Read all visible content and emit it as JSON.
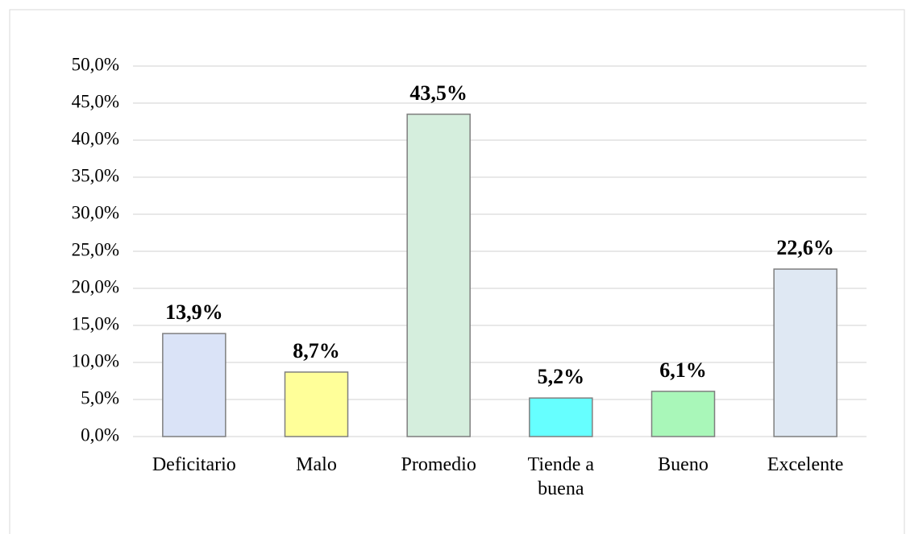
{
  "chart_data": {
    "type": "bar",
    "categories": [
      "Deficitario",
      "Malo",
      "Promedio",
      "Tiende a buena",
      "Bueno",
      "Excelente"
    ],
    "values": [
      13.9,
      8.7,
      43.5,
      5.2,
      6.1,
      22.6
    ],
    "value_labels": [
      "13,9%",
      "8,7%",
      "43,5%",
      "5,2%",
      "6,1%",
      "22,6%"
    ],
    "colors": [
      "#dae3f7",
      "#ffff99",
      "#d5eedd",
      "#66ffff",
      "#a9f7b9",
      "#dfe8f3"
    ],
    "ylim": [
      0,
      50
    ],
    "yticks": [
      {
        "value": 0,
        "label": "0,0%"
      },
      {
        "value": 5,
        "label": "5,0%"
      },
      {
        "value": 10,
        "label": "10,0%"
      },
      {
        "value": 15,
        "label": "15,0%"
      },
      {
        "value": 20,
        "label": "20,0%"
      },
      {
        "value": 25,
        "label": "25,0%"
      },
      {
        "value": 30,
        "label": "30,0%"
      },
      {
        "value": 35,
        "label": "35,0%"
      },
      {
        "value": 40,
        "label": "40,0%"
      },
      {
        "value": 45,
        "label": "45,0%"
      },
      {
        "value": 50,
        "label": "50,0%"
      }
    ],
    "grid": true
  }
}
